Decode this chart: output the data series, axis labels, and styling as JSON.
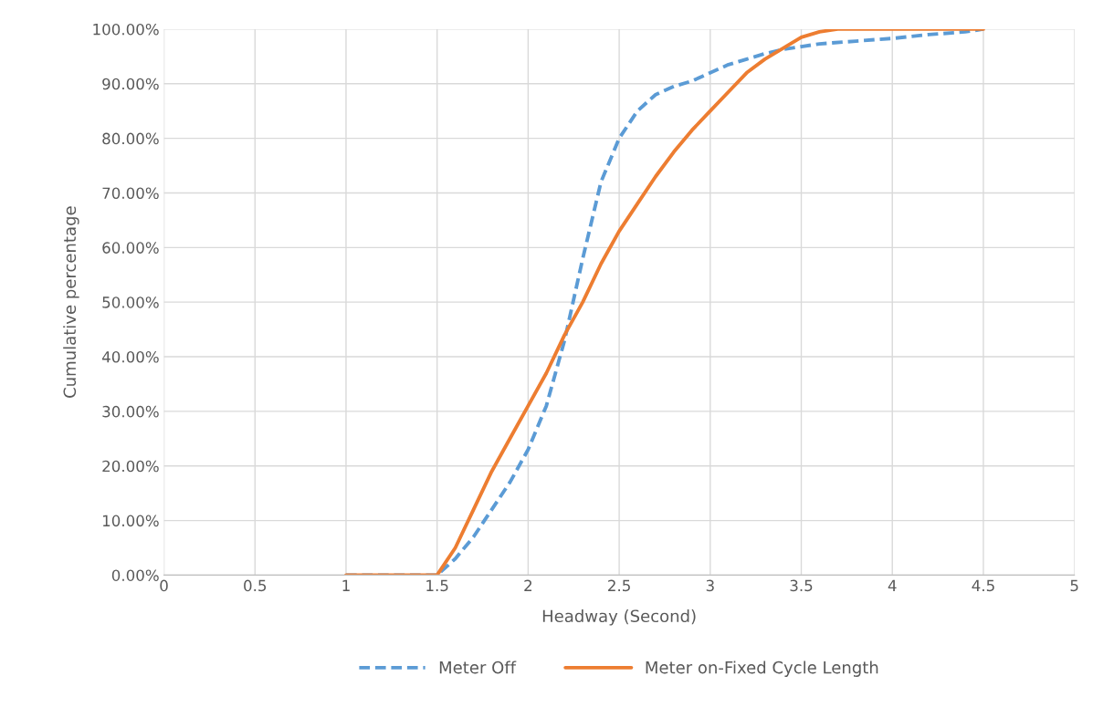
{
  "chart_data": {
    "type": "line",
    "xlabel": "Headway (Second)",
    "ylabel": "Cumulative percentage",
    "xlim": [
      0,
      5
    ],
    "xticks": [
      0,
      0.5,
      1,
      1.5,
      2,
      2.5,
      3,
      3.5,
      4,
      4.5,
      5
    ],
    "ylim": [
      0,
      100
    ],
    "yticks": [
      {
        "value": 0,
        "label": "0.00%"
      },
      {
        "value": 10,
        "label": "10.00%"
      },
      {
        "value": 20,
        "label": "20.00%"
      },
      {
        "value": 30,
        "label": "30.00%"
      },
      {
        "value": 40,
        "label": "40.00%"
      },
      {
        "value": 50,
        "label": "50.00%"
      },
      {
        "value": 60,
        "label": "60.00%"
      },
      {
        "value": 70,
        "label": "70.00%"
      },
      {
        "value": 80,
        "label": "80.00%"
      },
      {
        "value": 90,
        "label": "90.00%"
      },
      {
        "value": 100,
        "label": "100.00%"
      }
    ],
    "grid": true,
    "legend": "bottom",
    "marker": "none",
    "series": [
      {
        "name": "Meter Off",
        "color": "#5b9bd5",
        "line_style": "dashed",
        "x": [
          1.0,
          1.1,
          1.5,
          1.6,
          1.7,
          1.8,
          1.9,
          2.0,
          2.1,
          2.2,
          2.3,
          2.4,
          2.5,
          2.6,
          2.7,
          2.8,
          2.9,
          3.0,
          3.1,
          3.2,
          3.3,
          3.4,
          3.5,
          3.6,
          3.8,
          4.0,
          4.2,
          4.4,
          4.5
        ],
        "values": [
          0,
          0,
          0,
          3,
          7,
          12,
          17,
          23,
          31,
          43,
          58,
          72,
          80,
          85,
          88,
          89.5,
          90.5,
          92,
          93.5,
          94.5,
          95.5,
          96.3,
          96.8,
          97.3,
          97.8,
          98.3,
          99,
          99.5,
          100
        ]
      },
      {
        "name": "Meter on-Fixed Cycle Length",
        "color": "#ed7d31",
        "line_style": "solid",
        "x": [
          1.0,
          1.5,
          1.6,
          1.7,
          1.8,
          1.9,
          2.0,
          2.1,
          2.2,
          2.3,
          2.4,
          2.5,
          2.6,
          2.7,
          2.8,
          2.9,
          3.0,
          3.1,
          3.2,
          3.3,
          3.4,
          3.5,
          3.6,
          3.7,
          4.5
        ],
        "values": [
          0,
          0,
          5,
          12,
          19,
          25,
          31,
          37,
          44,
          50,
          57,
          63,
          68,
          73,
          77.5,
          81.5,
          85,
          88.5,
          92,
          94.5,
          96.5,
          98.5,
          99.5,
          100,
          100
        ]
      }
    ]
  }
}
